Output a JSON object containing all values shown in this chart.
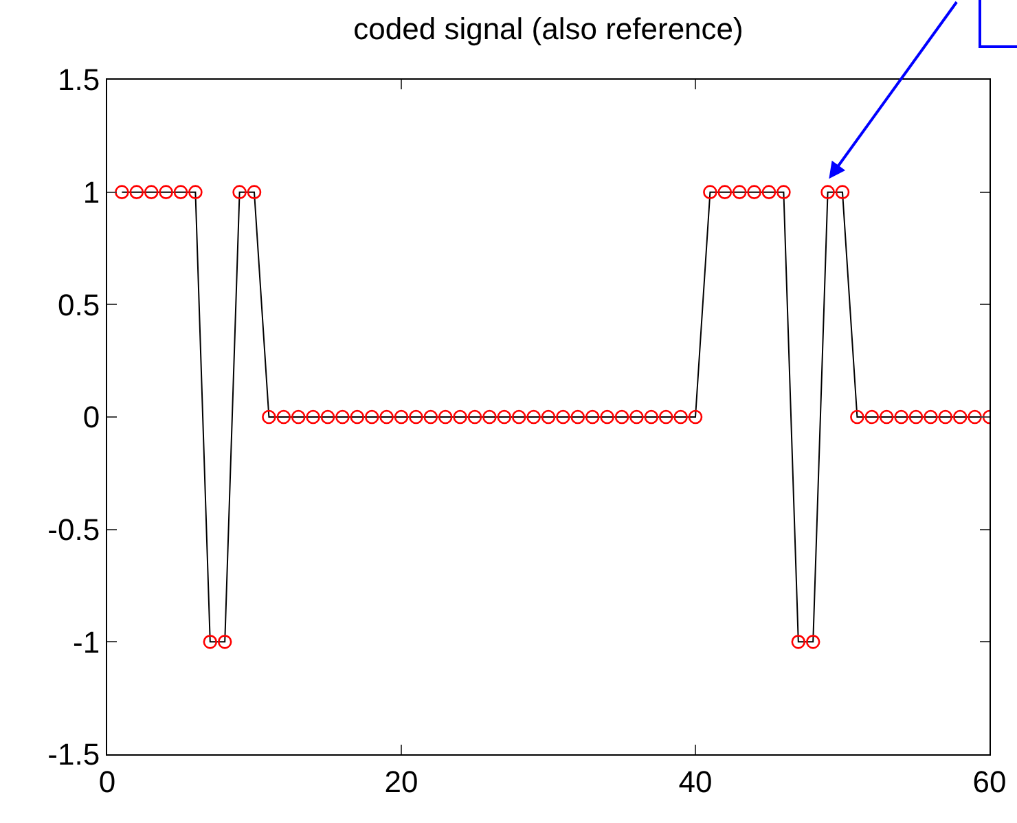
{
  "chart_data": {
    "type": "line",
    "title": "coded signal (also reference)",
    "x": [
      1,
      2,
      3,
      4,
      5,
      6,
      7,
      8,
      9,
      10,
      11,
      12,
      13,
      14,
      15,
      16,
      17,
      18,
      19,
      20,
      21,
      22,
      23,
      24,
      25,
      26,
      27,
      28,
      29,
      30,
      31,
      32,
      33,
      34,
      35,
      36,
      37,
      38,
      39,
      40,
      41,
      42,
      43,
      44,
      45,
      46,
      47,
      48,
      49,
      50,
      51,
      52,
      53,
      54,
      55,
      56,
      57,
      58,
      59,
      60
    ],
    "series": [
      {
        "color": "#000000",
        "marker": "none",
        "values": [
          1,
          1,
          1,
          1,
          1,
          1,
          -1,
          -1,
          1,
          1,
          0,
          0,
          0,
          0,
          0,
          0,
          0,
          0,
          0,
          0,
          0,
          0,
          0,
          0,
          0,
          0,
          0,
          0,
          0,
          0,
          0,
          0,
          0,
          0,
          0,
          0,
          0,
          0,
          0,
          0,
          1,
          1,
          1,
          1,
          1,
          1,
          -1,
          -1,
          1,
          1,
          0,
          0,
          0,
          0,
          0,
          0,
          0,
          0,
          0,
          0
        ]
      },
      {
        "type": "scatter",
        "color": "#ff0000",
        "marker": "circle",
        "values": [
          1,
          1,
          1,
          1,
          1,
          1,
          -1,
          -1,
          1,
          1,
          0,
          0,
          0,
          0,
          0,
          0,
          0,
          0,
          0,
          0,
          0,
          0,
          0,
          0,
          0,
          0,
          0,
          0,
          0,
          0,
          0,
          0,
          0,
          0,
          0,
          0,
          0,
          0,
          0,
          0,
          1,
          1,
          1,
          1,
          1,
          1,
          -1,
          -1,
          1,
          1,
          0,
          0,
          0,
          0,
          0,
          0,
          0,
          0,
          0,
          0
        ]
      }
    ],
    "xlim": [
      0,
      60
    ],
    "xticks": [
      0,
      20,
      40,
      60
    ],
    "ylim": [
      -1.5,
      1.5
    ],
    "yticks": [
      {
        "value": -1.5,
        "label": "-1.5"
      },
      -1,
      {
        "value": -0.5,
        "label": "-0.5"
      },
      0,
      0.5,
      1,
      1.5
    ],
    "grid": false
  }
}
